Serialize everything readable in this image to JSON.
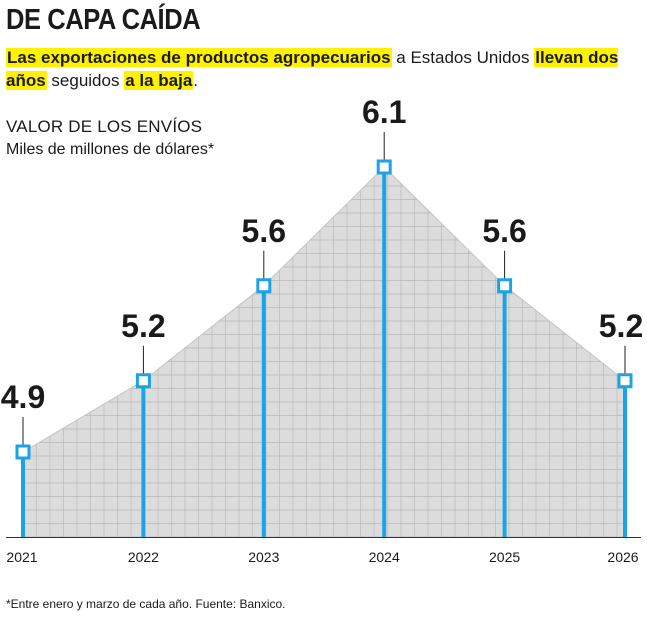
{
  "header": {
    "title": "DE CAPA CAÍDA",
    "subtitle_parts": [
      {
        "text": "Las exportaciones de productos agropecuarios",
        "highlight": true
      },
      {
        "text": " a Estados Unidos ",
        "highlight": false
      },
      {
        "text": "llevan dos años",
        "highlight": true
      },
      {
        "text": " seguidos ",
        "highlight": false
      },
      {
        "text": "a la baja",
        "highlight": true
      },
      {
        "text": ".",
        "highlight": false
      }
    ]
  },
  "chart_data": {
    "type": "area",
    "title": "VALOR DE LOS ENVÍOS",
    "ylabel": "Miles de millones de dólares*",
    "categories": [
      "2021",
      "2022",
      "2023",
      "2024",
      "2025",
      "2026"
    ],
    "values": [
      4.9,
      5.2,
      5.6,
      6.1,
      5.6,
      5.2
    ],
    "value_labels": [
      "4.9",
      "5.2",
      "5.6",
      "6.1",
      "5.6",
      "5.2"
    ],
    "ylim": [
      4.0,
      6.1
    ],
    "grid": true,
    "colors": {
      "stem": "#1aa3e8",
      "area": "#dcdcdc",
      "grid": "#b8b8b8",
      "text": "#1a1a1a",
      "highlight": "#fff200"
    }
  },
  "footnote": "*Entre enero y marzo de cada año. Fuente: Banxico."
}
